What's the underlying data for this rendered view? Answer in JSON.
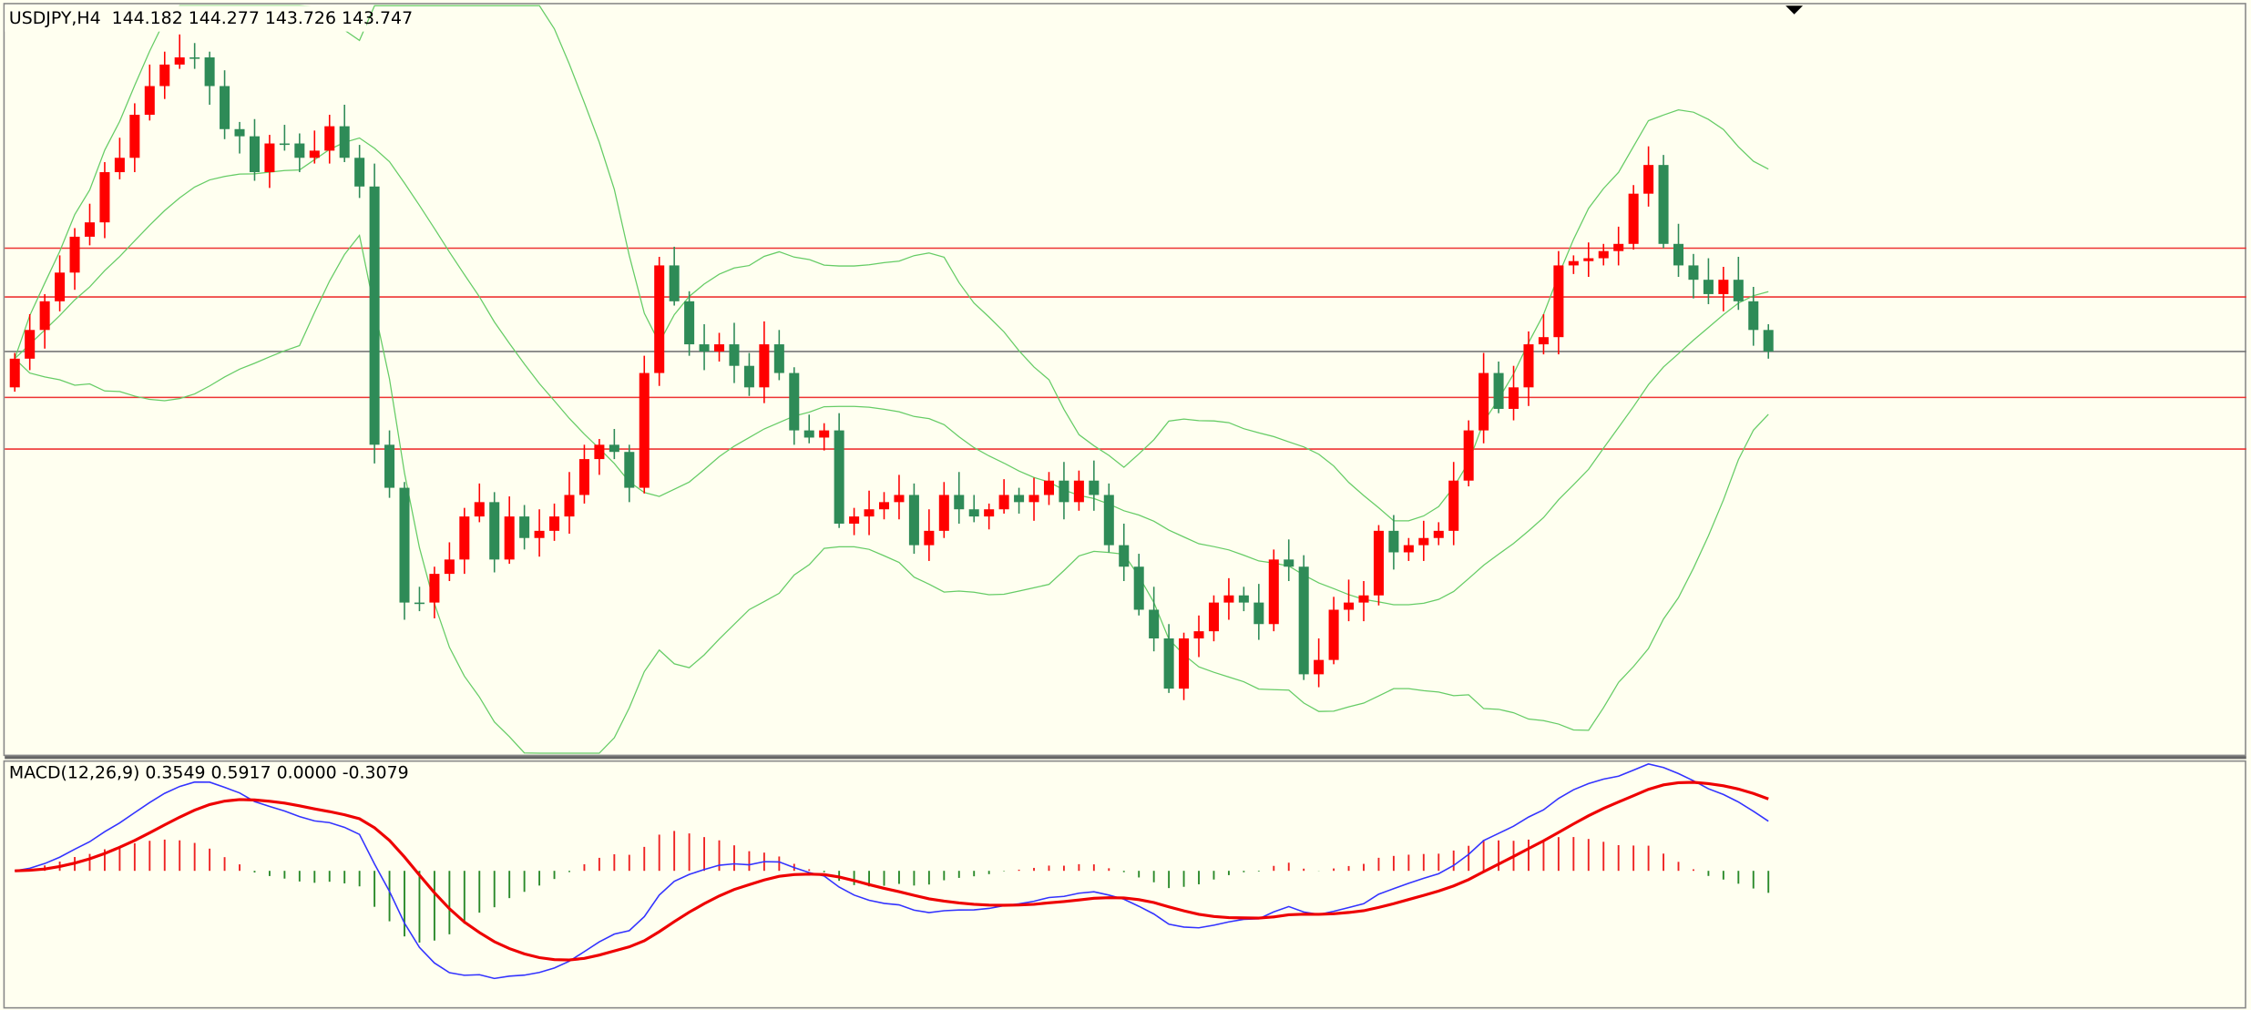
{
  "header": {
    "title": "USDJPY,H4  144.182 144.277 143.726 143.747"
  },
  "macd": {
    "label": "MACD(12,26,9) 0.3549 0.5917 0.0000 -0.3079"
  }
}
